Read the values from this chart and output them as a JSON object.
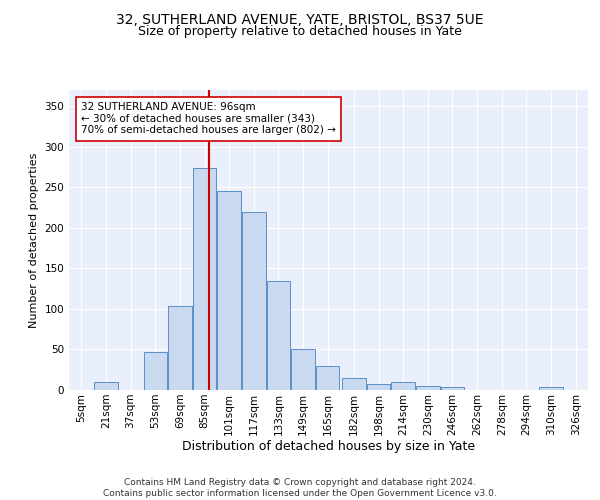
{
  "title_line1": "32, SUTHERLAND AVENUE, YATE, BRISTOL, BS37 5UE",
  "title_line2": "Size of property relative to detached houses in Yate",
  "xlabel": "Distribution of detached houses by size in Yate",
  "ylabel": "Number of detached properties",
  "bin_labels": [
    "5sqm",
    "21sqm",
    "37sqm",
    "53sqm",
    "69sqm",
    "85sqm",
    "101sqm",
    "117sqm",
    "133sqm",
    "149sqm",
    "165sqm",
    "182sqm",
    "198sqm",
    "214sqm",
    "230sqm",
    "246sqm",
    "262sqm",
    "278sqm",
    "294sqm",
    "310sqm",
    "326sqm"
  ],
  "bin_edges": [
    5,
    21,
    37,
    53,
    69,
    85,
    101,
    117,
    133,
    149,
    165,
    182,
    198,
    214,
    230,
    246,
    262,
    278,
    294,
    310,
    326,
    342
  ],
  "bar_values": [
    0,
    10,
    0,
    47,
    104,
    274,
    246,
    219,
    135,
    50,
    30,
    15,
    7,
    10,
    5,
    4,
    0,
    0,
    0,
    4,
    0
  ],
  "bar_facecolor": "#c9d9f0",
  "bar_edgecolor": "#5b8fc9",
  "vline_x": 96,
  "vline_color": "#cc0000",
  "annotation_text": "32 SUTHERLAND AVENUE: 96sqm\n← 30% of detached houses are smaller (343)\n70% of semi-detached houses are larger (802) →",
  "annotation_box_color": "#ffffff",
  "annotation_box_edgecolor": "#cc0000",
  "ylim": [
    0,
    370
  ],
  "yticks": [
    0,
    50,
    100,
    150,
    200,
    250,
    300,
    350
  ],
  "footer_text": "Contains HM Land Registry data © Crown copyright and database right 2024.\nContains public sector information licensed under the Open Government Licence v3.0.",
  "bg_color": "#eaf0fb",
  "grid_color": "#ffffff",
  "title1_fontsize": 10,
  "title2_fontsize": 9,
  "xlabel_fontsize": 9,
  "ylabel_fontsize": 8,
  "tick_fontsize": 7.5,
  "annotation_fontsize": 7.5,
  "footer_fontsize": 6.5
}
